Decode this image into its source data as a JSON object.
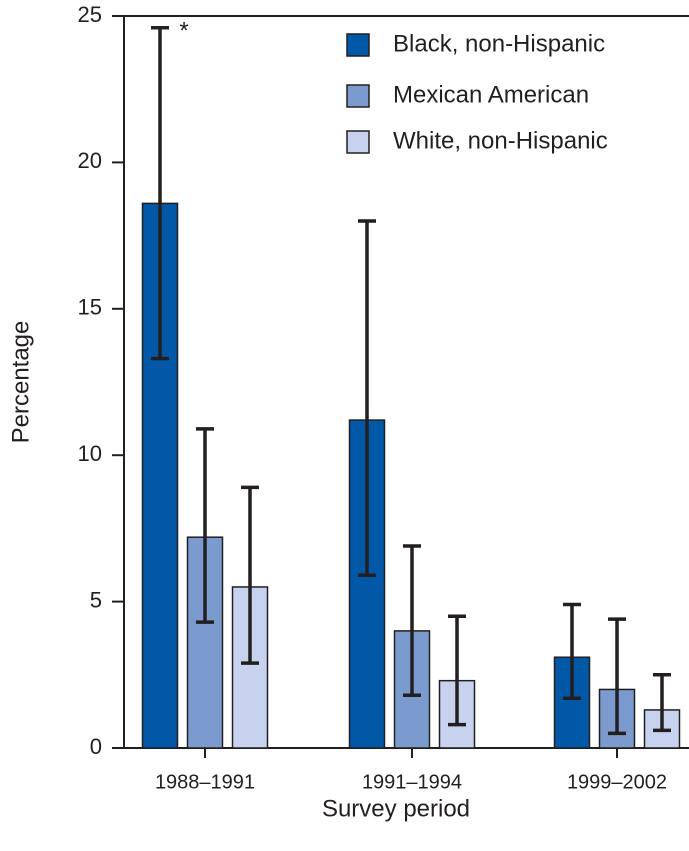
{
  "chart_data": {
    "type": "bar",
    "y_label": "Percentage",
    "x_label": "Survey period",
    "categories": [
      "1988–1991",
      "1991–1994",
      "1999–2002"
    ],
    "series": [
      {
        "name": "Black, non-Hispanic",
        "color": "#0058a6",
        "values": [
          18.6,
          11.2,
          3.1
        ],
        "error_low": [
          13.3,
          5.9,
          1.7
        ],
        "error_high": [
          24.6,
          18.0,
          4.9
        ]
      },
      {
        "name": "Mexican American",
        "color": "#7b9bcf",
        "values": [
          7.2,
          4.0,
          2.0
        ],
        "error_low": [
          4.3,
          1.8,
          0.5
        ],
        "error_high": [
          10.9,
          6.9,
          4.4
        ]
      },
      {
        "name": "White, non-Hispanic",
        "color": "#c7d3ee",
        "values": [
          5.5,
          2.3,
          1.3
        ],
        "error_low": [
          2.9,
          0.8,
          0.6
        ],
        "error_high": [
          8.9,
          4.5,
          2.5
        ]
      }
    ],
    "annotation": "*",
    "ylim": [
      0,
      25
    ],
    "yticks": [
      0,
      5,
      10,
      15,
      20,
      25
    ],
    "legend": "upper-right"
  }
}
